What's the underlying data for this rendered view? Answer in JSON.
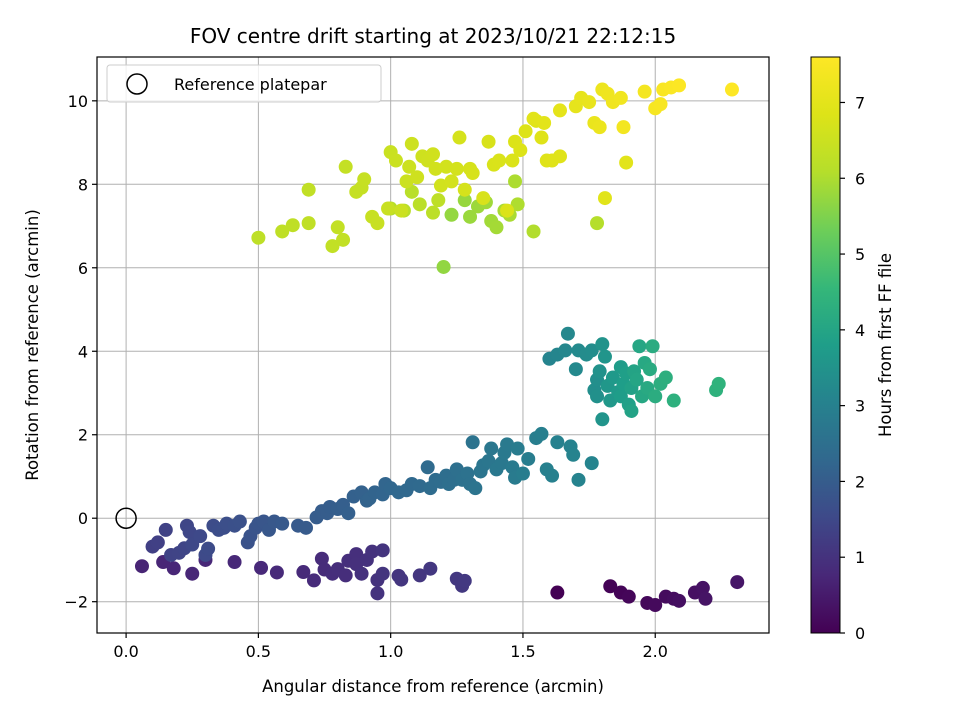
{
  "chart_data": {
    "type": "scatter",
    "title": "FOV centre drift starting at 2023/10/21 22:12:15",
    "xlabel": "Angular distance from reference (arcmin)",
    "ylabel": "Rotation from reference (arcmin)",
    "xlim": [
      -0.11,
      2.43
    ],
    "ylim": [
      -2.75,
      11.05
    ],
    "xticks": [
      0.0,
      0.5,
      1.0,
      1.5,
      2.0
    ],
    "xtick_labels": [
      "0.0",
      "0.5",
      "1.0",
      "1.5",
      "2.0"
    ],
    "yticks": [
      -2,
      0,
      2,
      4,
      6,
      8,
      10
    ],
    "ytick_labels": [
      "−2",
      "0",
      "2",
      "4",
      "6",
      "8",
      "10"
    ],
    "grid": true,
    "legend": {
      "placement": "top-left",
      "entries": [
        {
          "label": "Reference platepar",
          "marker": "hollow-circle"
        }
      ]
    },
    "reference_point": {
      "x": 0.0,
      "y": 0.0
    },
    "colorbar": {
      "label": "Hours from first FF file",
      "colormap": "viridis",
      "range": [
        0,
        7.6
      ],
      "ticks": [
        0,
        1,
        2,
        3,
        4,
        5,
        6,
        7
      ],
      "tick_labels": [
        "0",
        "1",
        "2",
        "3",
        "4",
        "5",
        "6",
        "7"
      ]
    },
    "clusters": [
      {
        "hours_range": [
          0.0,
          0.4
        ],
        "points": [
          [
            1.63,
            -1.78
          ],
          [
            1.83,
            -1.63
          ],
          [
            1.87,
            -1.78
          ],
          [
            1.9,
            -1.88
          ],
          [
            1.97,
            -2.03
          ],
          [
            2.0,
            -2.08
          ],
          [
            2.04,
            -1.88
          ],
          [
            2.07,
            -1.93
          ],
          [
            2.09,
            -1.98
          ],
          [
            2.15,
            -1.78
          ],
          [
            2.18,
            -1.67
          ],
          [
            2.19,
            -1.93
          ],
          [
            2.31,
            -1.53
          ]
        ]
      },
      {
        "hours_range": [
          0.7,
          1.15
        ],
        "points": [
          [
            0.06,
            -1.15
          ],
          [
            0.14,
            -1.05
          ],
          [
            0.18,
            -1.2
          ],
          [
            0.25,
            -1.33
          ],
          [
            0.3,
            -1.0
          ],
          [
            0.41,
            -1.05
          ],
          [
            0.51,
            -1.19
          ],
          [
            0.57,
            -1.3
          ],
          [
            0.67,
            -1.29
          ],
          [
            0.71,
            -1.49
          ],
          [
            0.74,
            -0.97
          ],
          [
            0.75,
            -1.23
          ],
          [
            0.78,
            -1.33
          ],
          [
            0.8,
            -1.22
          ],
          [
            0.83,
            -1.37
          ],
          [
            0.84,
            -1.02
          ],
          [
            0.87,
            -0.86
          ],
          [
            0.87,
            -1.1
          ],
          [
            0.89,
            -1.33
          ],
          [
            0.91,
            -1.0
          ],
          [
            0.93,
            -0.8
          ],
          [
            0.95,
            -1.48
          ],
          [
            0.95,
            -1.8
          ],
          [
            0.97,
            -0.77
          ],
          [
            0.97,
            -1.33
          ],
          [
            1.03,
            -1.38
          ],
          [
            1.04,
            -1.47
          ],
          [
            1.11,
            -1.37
          ],
          [
            1.15,
            -1.21
          ],
          [
            1.25,
            -1.45
          ],
          [
            1.27,
            -1.62
          ],
          [
            1.28,
            -1.5
          ]
        ]
      },
      {
        "hours_range": [
          1.3,
          2.0
        ],
        "points": [
          [
            0.1,
            -0.68
          ],
          [
            0.12,
            -0.58
          ],
          [
            0.15,
            -0.28
          ],
          [
            0.17,
            -0.88
          ],
          [
            0.2,
            -0.83
          ],
          [
            0.22,
            -0.72
          ],
          [
            0.23,
            -0.18
          ],
          [
            0.24,
            -0.33
          ],
          [
            0.25,
            -0.63
          ],
          [
            0.28,
            -0.43
          ],
          [
            0.3,
            -0.88
          ],
          [
            0.31,
            -0.73
          ],
          [
            0.33,
            -0.18
          ],
          [
            0.35,
            -0.28
          ],
          [
            0.37,
            -0.23
          ],
          [
            0.38,
            -0.13
          ],
          [
            0.41,
            -0.18
          ],
          [
            0.43,
            -0.08
          ],
          [
            0.46,
            -0.58
          ],
          [
            0.47,
            -0.43
          ],
          [
            0.49,
            -0.23
          ],
          [
            0.5,
            -0.13
          ],
          [
            0.52,
            -0.08
          ],
          [
            0.54,
            -0.28
          ],
          [
            0.56,
            -0.08
          ],
          [
            0.59,
            -0.13
          ],
          [
            0.65,
            -0.18
          ],
          [
            0.68,
            -0.23
          ],
          [
            0.72,
            0.02
          ],
          [
            0.74,
            0.17
          ]
        ]
      },
      {
        "hours_range": [
          2.0,
          3.1
        ],
        "points": [
          [
            0.76,
            0.12
          ],
          [
            0.77,
            0.27
          ],
          [
            0.8,
            0.22
          ],
          [
            0.82,
            0.32
          ],
          [
            0.84,
            0.12
          ],
          [
            0.86,
            0.52
          ],
          [
            0.89,
            0.62
          ],
          [
            0.91,
            0.42
          ],
          [
            0.92,
            0.47
          ],
          [
            0.94,
            0.62
          ],
          [
            0.97,
            0.57
          ],
          [
            0.98,
            0.82
          ],
          [
            1.0,
            0.72
          ],
          [
            1.03,
            0.62
          ],
          [
            1.06,
            0.67
          ],
          [
            1.08,
            0.82
          ],
          [
            1.11,
            0.77
          ],
          [
            1.14,
            1.22
          ],
          [
            1.15,
            0.72
          ],
          [
            1.17,
            0.92
          ],
          [
            1.19,
            0.87
          ],
          [
            1.21,
            1.02
          ],
          [
            1.22,
            0.82
          ],
          [
            1.24,
            0.92
          ],
          [
            1.25,
            1.17
          ],
          [
            1.27,
            0.92
          ],
          [
            1.29,
            1.07
          ],
          [
            1.3,
            0.82
          ],
          [
            1.31,
            1.82
          ],
          [
            1.32,
            0.72
          ],
          [
            1.34,
            1.12
          ],
          [
            1.35,
            1.27
          ],
          [
            1.37,
            1.37
          ],
          [
            1.38,
            1.67
          ],
          [
            1.4,
            1.17
          ],
          [
            1.42,
            1.32
          ],
          [
            1.43,
            1.57
          ],
          [
            1.44,
            1.77
          ],
          [
            1.46,
            1.22
          ],
          [
            1.47,
            0.97
          ],
          [
            1.48,
            1.67
          ],
          [
            1.5,
            1.07
          ],
          [
            1.52,
            1.42
          ],
          [
            1.55,
            1.92
          ],
          [
            1.57,
            2.02
          ],
          [
            1.59,
            1.17
          ],
          [
            1.61,
            1.02
          ],
          [
            1.63,
            1.82
          ],
          [
            1.68,
            1.72
          ],
          [
            1.69,
            1.52
          ],
          [
            1.71,
            0.92
          ],
          [
            1.76,
            1.32
          ]
        ]
      },
      {
        "hours_range": [
          3.1,
          4.4
        ],
        "points": [
          [
            1.6,
            3.82
          ],
          [
            1.63,
            3.92
          ],
          [
            1.66,
            4.02
          ],
          [
            1.67,
            4.42
          ],
          [
            1.7,
            3.57
          ],
          [
            1.71,
            4.02
          ],
          [
            1.74,
            3.92
          ],
          [
            1.76,
            4.02
          ],
          [
            1.77,
            3.07
          ],
          [
            1.78,
            3.32
          ],
          [
            1.78,
            2.92
          ],
          [
            1.79,
            3.52
          ],
          [
            1.8,
            4.17
          ],
          [
            1.8,
            2.37
          ],
          [
            1.81,
            3.87
          ],
          [
            1.82,
            3.17
          ],
          [
            1.83,
            2.82
          ],
          [
            1.84,
            3.37
          ],
          [
            1.86,
            3.02
          ],
          [
            1.87,
            3.62
          ],
          [
            1.87,
            2.92
          ],
          [
            1.88,
            3.22
          ],
          [
            1.89,
            3.47
          ],
          [
            1.9,
            2.72
          ],
          [
            1.91,
            3.12
          ],
          [
            1.91,
            2.57
          ],
          [
            1.92,
            3.52
          ],
          [
            1.93,
            3.32
          ],
          [
            1.94,
            4.12
          ],
          [
            1.95,
            2.92
          ],
          [
            1.96,
            3.72
          ],
          [
            1.97,
            3.12
          ],
          [
            1.98,
            3.57
          ],
          [
            1.99,
            4.12
          ],
          [
            2.0,
            2.92
          ],
          [
            2.02,
            3.22
          ],
          [
            2.04,
            3.37
          ],
          [
            2.07,
            2.82
          ],
          [
            2.23,
            3.07
          ],
          [
            2.24,
            3.22
          ]
        ]
      },
      {
        "hours_range": [
          5.7,
          6.25
        ],
        "points": [
          [
            1.2,
            6.02
          ],
          [
            1.23,
            7.27
          ],
          [
            1.28,
            7.62
          ],
          [
            1.3,
            7.22
          ],
          [
            1.33,
            7.47
          ],
          [
            1.36,
            7.57
          ],
          [
            1.38,
            7.12
          ],
          [
            1.4,
            6.97
          ],
          [
            1.43,
            7.37
          ],
          [
            1.45,
            7.27
          ],
          [
            1.47,
            8.07
          ],
          [
            1.48,
            7.52
          ],
          [
            1.54,
            6.87
          ],
          [
            1.78,
            7.07
          ],
          [
            1.0,
            7.42
          ],
          [
            1.05,
            7.37
          ],
          [
            1.08,
            7.82
          ],
          [
            1.11,
            7.52
          ],
          [
            1.16,
            7.32
          ],
          [
            1.18,
            7.62
          ]
        ]
      },
      {
        "hours_range": [
          6.25,
          6.95
        ],
        "points": [
          [
            0.5,
            6.72
          ],
          [
            0.59,
            6.87
          ],
          [
            0.63,
            7.02
          ],
          [
            0.69,
            7.07
          ],
          [
            0.69,
            7.87
          ],
          [
            0.78,
            6.52
          ],
          [
            0.82,
            6.67
          ],
          [
            0.8,
            6.97
          ],
          [
            0.83,
            8.42
          ],
          [
            0.87,
            7.82
          ],
          [
            0.89,
            7.92
          ],
          [
            0.9,
            8.12
          ],
          [
            0.93,
            7.22
          ],
          [
            0.95,
            7.07
          ],
          [
            0.99,
            7.42
          ],
          [
            1.0,
            8.77
          ],
          [
            1.02,
            8.57
          ],
          [
            1.04,
            7.37
          ],
          [
            1.06,
            8.07
          ],
          [
            1.07,
            8.42
          ],
          [
            1.08,
            8.97
          ],
          [
            1.1,
            8.17
          ],
          [
            1.12,
            8.67
          ],
          [
            1.14,
            8.57
          ],
          [
            1.16,
            8.72
          ],
          [
            1.17,
            8.37
          ],
          [
            1.19,
            7.97
          ],
          [
            1.21,
            8.42
          ],
          [
            1.23,
            8.07
          ],
          [
            1.25,
            8.37
          ],
          [
            1.26,
            9.12
          ],
          [
            1.28,
            7.87
          ],
          [
            1.3,
            8.37
          ],
          [
            1.31,
            8.27
          ],
          [
            1.35,
            7.67
          ],
          [
            1.37,
            9.02
          ],
          [
            1.39,
            8.47
          ],
          [
            1.41,
            8.57
          ],
          [
            1.44,
            7.37
          ],
          [
            1.46,
            8.57
          ],
          [
            1.47,
            9.02
          ],
          [
            1.49,
            8.82
          ],
          [
            1.51,
            9.27
          ],
          [
            1.55,
            9.52
          ],
          [
            1.57,
            9.12
          ],
          [
            1.59,
            8.57
          ],
          [
            1.61,
            8.57
          ],
          [
            1.64,
            8.67
          ],
          [
            1.81,
            7.67
          ],
          [
            1.89,
            8.52
          ]
        ]
      },
      {
        "hours_range": [
          6.95,
          7.6
        ],
        "points": [
          [
            1.54,
            9.57
          ],
          [
            1.58,
            9.47
          ],
          [
            1.64,
            9.77
          ],
          [
            1.7,
            9.87
          ],
          [
            1.72,
            10.07
          ],
          [
            1.75,
            9.97
          ],
          [
            1.77,
            9.47
          ],
          [
            1.79,
            9.37
          ],
          [
            1.8,
            10.27
          ],
          [
            1.82,
            10.17
          ],
          [
            1.84,
            9.97
          ],
          [
            1.87,
            10.07
          ],
          [
            1.88,
            9.37
          ],
          [
            1.96,
            10.22
          ],
          [
            2.0,
            9.82
          ],
          [
            2.02,
            9.92
          ],
          [
            2.03,
            10.27
          ],
          [
            2.06,
            10.32
          ],
          [
            2.09,
            10.37
          ],
          [
            2.29,
            10.27
          ]
        ]
      }
    ]
  }
}
